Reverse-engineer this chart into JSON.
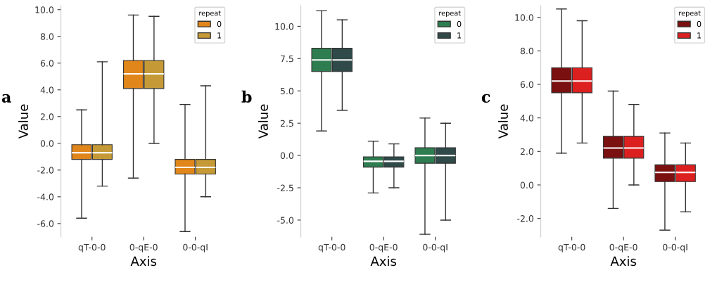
{
  "chart_data": [
    {
      "type": "box",
      "xlabel": "Axis",
      "ylabel": "Value",
      "legend_title": "repeat",
      "legend": "top right",
      "grid": false,
      "annotations": [
        "a"
      ],
      "categories": [
        "qT-0-0",
        "0-qE-0",
        "0-0-qI"
      ],
      "ylim": [
        -7,
        10.3
      ],
      "yticks": [
        {
          "value": -6,
          "label": "-6.0"
        },
        {
          "value": -4,
          "label": "-4.0"
        },
        {
          "value": -2,
          "label": "-2.0"
        },
        {
          "value": 0,
          "label": "0.0"
        },
        {
          "value": 2,
          "label": "2.0"
        },
        {
          "value": 4,
          "label": "4.0"
        },
        {
          "value": 6,
          "label": "6.0"
        },
        {
          "value": 8,
          "label": "8.0"
        },
        {
          "value": 10,
          "label": "10.0"
        }
      ],
      "series": [
        {
          "name": "0",
          "color": "#e0861a",
          "boxes": [
            {
              "low": -5.6,
              "q1": -1.2,
              "median": -0.7,
              "q3": -0.1,
              "high": 2.5
            },
            {
              "low": -2.6,
              "q1": 4.1,
              "median": 5.2,
              "q3": 6.2,
              "high": 9.6
            },
            {
              "low": -6.6,
              "q1": -2.3,
              "median": -1.8,
              "q3": -1.2,
              "high": 2.9
            }
          ]
        },
        {
          "name": "1",
          "color": "#c59a36",
          "boxes": [
            {
              "low": -3.2,
              "q1": -1.2,
              "median": -0.7,
              "q3": -0.1,
              "high": 6.1
            },
            {
              "low": 0.0,
              "q1": 4.1,
              "median": 5.2,
              "q3": 6.2,
              "high": 9.5
            },
            {
              "low": -4.0,
              "q1": -2.3,
              "median": -1.8,
              "q3": -1.2,
              "high": 4.3
            }
          ]
        }
      ]
    },
    {
      "type": "box",
      "xlabel": "Axis",
      "ylabel": "Value",
      "legend_title": "repeat",
      "legend": "top right",
      "grid": false,
      "annotations": [
        "b"
      ],
      "categories": [
        "qT-0-0",
        "0-qE-0",
        "0-0-qI"
      ],
      "ylim": [
        -6.3,
        11.6
      ],
      "yticks": [
        {
          "value": -5,
          "label": "-5.0"
        },
        {
          "value": -2.5,
          "label": "-2.5"
        },
        {
          "value": 0,
          "label": "0.0"
        },
        {
          "value": 2.5,
          "label": "2.5"
        },
        {
          "value": 5,
          "label": "5.0"
        },
        {
          "value": 7.5,
          "label": "7.5"
        },
        {
          "value": 10,
          "label": "10.0"
        }
      ],
      "series": [
        {
          "name": "0",
          "color": "#2e7d50",
          "boxes": [
            {
              "low": 1.9,
              "q1": 6.5,
              "median": 7.4,
              "q3": 8.3,
              "high": 11.2
            },
            {
              "low": -2.9,
              "q1": -0.9,
              "median": -0.45,
              "q3": -0.1,
              "high": 1.1
            },
            {
              "low": -6.1,
              "q1": -0.6,
              "median": 0.0,
              "q3": 0.6,
              "high": 2.9
            }
          ]
        },
        {
          "name": "1",
          "color": "#2f4a48",
          "boxes": [
            {
              "low": 3.5,
              "q1": 6.5,
              "median": 7.4,
              "q3": 8.3,
              "high": 10.5
            },
            {
              "low": -2.5,
              "q1": -0.9,
              "median": -0.45,
              "q3": -0.1,
              "high": 0.9
            },
            {
              "low": -5.0,
              "q1": -0.6,
              "median": 0.0,
              "q3": 0.6,
              "high": 2.5
            }
          ]
        }
      ]
    },
    {
      "type": "box",
      "xlabel": "Axis",
      "ylabel": "Value",
      "legend_title": "repeat",
      "legend": "top right",
      "grid": false,
      "annotations": [
        "c"
      ],
      "categories": [
        "qT-0-0",
        "0-qE-0",
        "0-0-qI"
      ],
      "ylim": [
        -3.1,
        10.7
      ],
      "yticks": [
        {
          "value": -2,
          "label": "-2.0"
        },
        {
          "value": 0,
          "label": "0.0"
        },
        {
          "value": 2,
          "label": "2.0"
        },
        {
          "value": 4,
          "label": "4.0"
        },
        {
          "value": 6,
          "label": "6.0"
        },
        {
          "value": 8,
          "label": "8.0"
        },
        {
          "value": 10,
          "label": "10.0"
        }
      ],
      "series": [
        {
          "name": "0",
          "color": "#7a1010",
          "boxes": [
            {
              "low": 1.9,
              "q1": 5.5,
              "median": 6.2,
              "q3": 7.0,
              "high": 10.5
            },
            {
              "low": -1.4,
              "q1": 1.6,
              "median": 2.2,
              "q3": 2.9,
              "high": 5.6
            },
            {
              "low": -2.7,
              "q1": 0.2,
              "median": 0.75,
              "q3": 1.2,
              "high": 3.1
            }
          ]
        },
        {
          "name": "1",
          "color": "#dc2020",
          "boxes": [
            {
              "low": 2.5,
              "q1": 5.5,
              "median": 6.2,
              "q3": 7.0,
              "high": 9.8
            },
            {
              "low": 0.0,
              "q1": 1.6,
              "median": 2.2,
              "q3": 2.9,
              "high": 4.8
            },
            {
              "low": -1.6,
              "q1": 0.2,
              "median": 0.75,
              "q3": 1.2,
              "high": 2.5
            }
          ]
        }
      ]
    }
  ]
}
